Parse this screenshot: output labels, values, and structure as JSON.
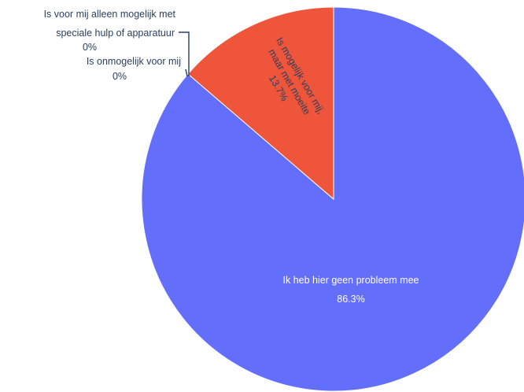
{
  "chart_data": {
    "type": "pie",
    "title": "",
    "slices": [
      {
        "label": "Ik heb hier geen probleem mee",
        "value": 86.3,
        "value_label": "86.3%",
        "color": "#636efa"
      },
      {
        "label": "Is mogelijk voor mij, maar met moeite",
        "value": 13.7,
        "value_label": "13.7%",
        "color": "#ef553b"
      },
      {
        "label": "Is voor mij alleen mogelijk met speciale hulp of apparatuur",
        "value": 0,
        "value_label": "0%",
        "color": "#00cc96"
      },
      {
        "label": "Is onmogelijk voor mij",
        "value": 0,
        "value_label": "0%",
        "color": "#ab63fa"
      }
    ],
    "direction": "clockwise",
    "start_angle": "top"
  }
}
